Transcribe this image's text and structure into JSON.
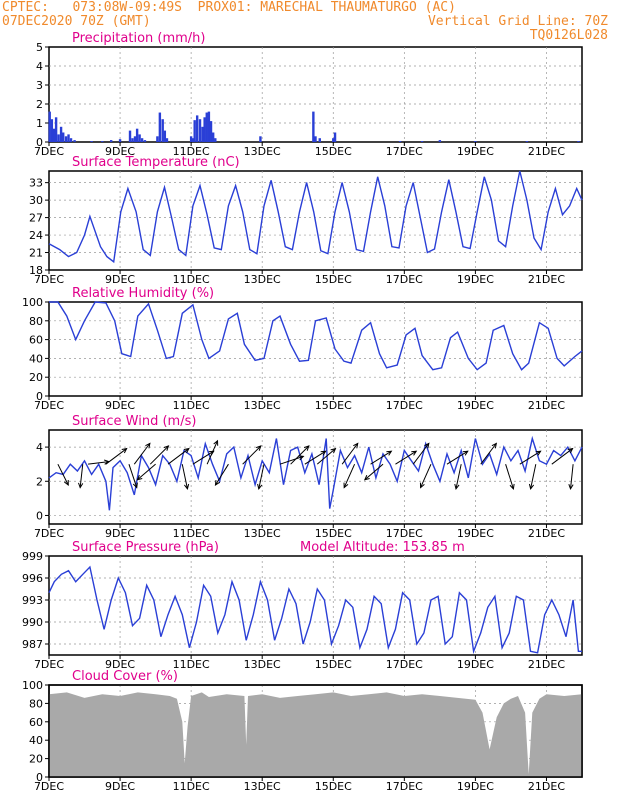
{
  "header": {
    "line1_left": "CPTEC:   073:08W-09:49S  PROX01: MARECHAL THAUMATURGO (AC)",
    "line2_left": "07DEC2020 70Z (GMT)",
    "line2_right": "Vertical Grid Line: 70Z",
    "line3_right": "TQ0126L028",
    "accent_color": "#f08a2c",
    "title_color": "#e0008c",
    "line_color": "#2a3fd6",
    "cloud_color": "#a9a9a9"
  },
  "x_axis": {
    "start": "7DEC",
    "end": "22DEC",
    "tick_labels": [
      "7DEC",
      "9DEC",
      "11DEC",
      "13DEC",
      "15DEC",
      "17DEC",
      "19DEC",
      "21DEC"
    ],
    "tick_days": [
      0,
      2,
      4,
      6,
      8,
      10,
      12,
      14
    ]
  },
  "chart_data": [
    {
      "id": "precip",
      "type": "bar",
      "title": "Precipitation (mm/h)",
      "ylim": [
        0,
        5
      ],
      "yticks": [
        0,
        1,
        2,
        3,
        4,
        5
      ],
      "x_unit": "days since 7DEC 00Z",
      "x": [
        0.02,
        0.08,
        0.14,
        0.2,
        0.27,
        0.34,
        0.4,
        0.48,
        0.55,
        0.62,
        0.72,
        1.2,
        1.5,
        1.75,
        2.0,
        2.28,
        2.35,
        2.42,
        2.48,
        2.55,
        2.62,
        2.7,
        3.05,
        3.12,
        3.2,
        3.26,
        3.32,
        4.0,
        4.05,
        4.1,
        4.17,
        4.25,
        4.32,
        4.38,
        4.44,
        4.5,
        4.56,
        4.62,
        4.68,
        5.95,
        7.44,
        7.5,
        7.62,
        8.0,
        8.05,
        9.88,
        10.5,
        11.0,
        12.0,
        13.45,
        14.9
      ],
      "values": [
        1.6,
        1.2,
        0.7,
        1.3,
        0.4,
        0.8,
        0.5,
        0.3,
        0.4,
        0.2,
        0.1,
        0.05,
        0.05,
        0.1,
        0.15,
        0.6,
        0.2,
        0.3,
        0.7,
        0.4,
        0.2,
        0.1,
        0.3,
        1.55,
        1.2,
        0.6,
        0.2,
        0.3,
        0.2,
        1.15,
        1.4,
        1.2,
        0.8,
        1.3,
        1.55,
        1.6,
        1.1,
        0.5,
        0.2,
        0.3,
        1.6,
        0.3,
        0.2,
        0.2,
        0.5,
        0.05,
        0.05,
        0.1,
        0.05,
        0.05,
        0.05
      ],
      "series_color": "#2a3fd6"
    },
    {
      "id": "temperature",
      "type": "line",
      "title": "Surface Temperature (nC)",
      "ylim": [
        18,
        35
      ],
      "yticks": [
        18,
        21,
        24,
        27,
        30,
        33
      ],
      "x_unit": "days since 7DEC 00Z",
      "x": [
        0,
        0.3,
        0.55,
        0.78,
        1.0,
        1.15,
        1.45,
        1.63,
        1.82,
        2.02,
        2.22,
        2.45,
        2.65,
        2.85,
        3.05,
        3.25,
        3.45,
        3.65,
        3.85,
        4.05,
        4.25,
        4.45,
        4.65,
        4.85,
        5.05,
        5.25,
        5.45,
        5.65,
        5.85,
        6.05,
        6.25,
        6.45,
        6.65,
        6.85,
        7.05,
        7.25,
        7.45,
        7.65,
        7.85,
        8.05,
        8.25,
        8.45,
        8.65,
        8.85,
        9.05,
        9.25,
        9.45,
        9.65,
        9.85,
        10.05,
        10.25,
        10.45,
        10.65,
        10.85,
        11.05,
        11.25,
        11.45,
        11.65,
        11.85,
        12.05,
        12.25,
        12.45,
        12.65,
        12.85,
        13.05,
        13.25,
        13.45,
        13.65,
        13.85,
        14.05,
        14.25,
        14.45,
        14.65,
        14.85,
        15.0
      ],
      "values": [
        22.5,
        21.5,
        20.3,
        21,
        24,
        27.2,
        22,
        20.3,
        19.4,
        28,
        32,
        28,
        21.5,
        20.5,
        28,
        32.2,
        27,
        21.5,
        20.5,
        29,
        32.5,
        27.5,
        21.8,
        21.5,
        29,
        32.5,
        28,
        21.5,
        20.8,
        29,
        33.4,
        28,
        22,
        21.5,
        28,
        33,
        28,
        21.3,
        20.8,
        28,
        33,
        28,
        21.5,
        21.2,
        28,
        34,
        29,
        22,
        21.8,
        29,
        33,
        27,
        21,
        21.6,
        28,
        33.5,
        28,
        22,
        21.7,
        28,
        34,
        30,
        23,
        22,
        29,
        35,
        30,
        23.5,
        21.5,
        28,
        32,
        27.5,
        29,
        32,
        30
      ],
      "series_color": "#2a3fd6"
    },
    {
      "id": "humidity",
      "type": "line",
      "title": "Relative Humidity (%)",
      "ylim": [
        0,
        100
      ],
      "yticks": [
        0,
        20,
        40,
        60,
        80,
        100
      ],
      "x_unit": "days since 7DEC 00Z",
      "x": [
        0,
        0.25,
        0.5,
        0.75,
        1.0,
        1.3,
        1.6,
        1.85,
        2.05,
        2.3,
        2.5,
        2.8,
        3.05,
        3.3,
        3.5,
        3.75,
        4.05,
        4.3,
        4.5,
        4.8,
        5.05,
        5.3,
        5.5,
        5.8,
        6.05,
        6.3,
        6.5,
        6.8,
        7.05,
        7.3,
        7.5,
        7.8,
        8.05,
        8.3,
        8.5,
        8.8,
        9.05,
        9.3,
        9.5,
        9.8,
        10.05,
        10.3,
        10.5,
        10.8,
        11.05,
        11.3,
        11.5,
        11.8,
        12.05,
        12.3,
        12.5,
        12.8,
        13.05,
        13.3,
        13.5,
        13.8,
        14.05,
        14.3,
        14.5,
        14.8,
        15.0
      ],
      "values": [
        100,
        100,
        85,
        60,
        80,
        100,
        99,
        80,
        45,
        42,
        85,
        98,
        70,
        40,
        42,
        88,
        97,
        60,
        40,
        48,
        82,
        88,
        55,
        38,
        40,
        80,
        85,
        55,
        37,
        38,
        80,
        83,
        50,
        37,
        35,
        70,
        78,
        45,
        30,
        33,
        65,
        72,
        43,
        28,
        30,
        62,
        68,
        40,
        28,
        35,
        70,
        75,
        45,
        28,
        35,
        78,
        72,
        40,
        32,
        42,
        48
      ],
      "series_color": "#2a3fd6"
    },
    {
      "id": "wind",
      "type": "line",
      "title": "Surface Wind (m/s)",
      "ylim": [
        -0.5,
        5
      ],
      "yticks": [
        0,
        2,
        4
      ],
      "x_unit": "days since 7DEC 00Z",
      "x": [
        0,
        0.2,
        0.4,
        0.6,
        0.8,
        1.0,
        1.2,
        1.4,
        1.6,
        1.7,
        1.8,
        2.0,
        2.2,
        2.4,
        2.6,
        2.8,
        3.0,
        3.2,
        3.4,
        3.6,
        3.8,
        4.0,
        4.2,
        4.4,
        4.6,
        4.8,
        5.0,
        5.2,
        5.4,
        5.6,
        5.8,
        6.0,
        6.2,
        6.4,
        6.6,
        6.8,
        7.0,
        7.2,
        7.4,
        7.6,
        7.8,
        7.9,
        8.0,
        8.2,
        8.4,
        8.6,
        8.8,
        9.0,
        9.2,
        9.4,
        9.6,
        9.8,
        10.0,
        10.2,
        10.4,
        10.6,
        10.8,
        11.0,
        11.2,
        11.4,
        11.6,
        11.8,
        12.0,
        12.2,
        12.4,
        12.6,
        12.8,
        13.0,
        13.2,
        13.4,
        13.6,
        13.8,
        14.0,
        14.2,
        14.4,
        14.6,
        14.8,
        15.0
      ],
      "values": [
        2.2,
        2.5,
        2.4,
        3.0,
        2.6,
        3.2,
        2.4,
        3.0,
        2.0,
        0.3,
        2.8,
        3.2,
        2.5,
        1.2,
        3.5,
        2.8,
        1.8,
        3.5,
        3.0,
        2.0,
        3.8,
        3.5,
        2.2,
        4.2,
        3.0,
        2.0,
        3.6,
        4.0,
        2.2,
        3.5,
        1.8,
        3.2,
        2.5,
        4.5,
        1.8,
        3.8,
        4.0,
        2.5,
        3.6,
        1.8,
        4.5,
        0.4,
        1.5,
        3.8,
        2.8,
        3.5,
        2.5,
        4.0,
        2.2,
        3.6,
        3.0,
        2.0,
        3.8,
        3.2,
        2.6,
        4.2,
        3.0,
        2.0,
        3.6,
        2.5,
        3.8,
        2.2,
        4.5,
        3.0,
        3.6,
        2.4,
        4.0,
        3.2,
        3.8,
        2.6,
        4.5,
        3.2,
        3.0,
        3.8,
        3.5,
        4.0,
        3.2,
        4.0
      ],
      "vectors": [
        {
          "x": 0.25,
          "u": 0.4,
          "v": -0.8
        },
        {
          "x": 0.95,
          "u": -0.1,
          "v": -0.9
        },
        {
          "x": 1.1,
          "u": 0.8,
          "v": 0.1
        },
        {
          "x": 1.6,
          "u": 0.8,
          "v": 0.6
        },
        {
          "x": 2.25,
          "u": 0.3,
          "v": -0.9
        },
        {
          "x": 2.4,
          "u": 0.6,
          "v": 0.8
        },
        {
          "x": 2.85,
          "u": 0.7,
          "v": 0.7
        },
        {
          "x": 3.0,
          "u": -0.7,
          "v": -0.6
        },
        {
          "x": 3.35,
          "u": 0.8,
          "v": 0.6
        },
        {
          "x": 3.75,
          "u": 0.2,
          "v": -0.95
        },
        {
          "x": 4.05,
          "u": 0.8,
          "v": 0.5
        },
        {
          "x": 4.45,
          "u": 0.4,
          "v": 0.9
        },
        {
          "x": 5.05,
          "u": -0.5,
          "v": -0.8
        },
        {
          "x": 5.45,
          "u": 0.7,
          "v": 0.7
        },
        {
          "x": 6.05,
          "u": -0.2,
          "v": -0.95
        },
        {
          "x": 6.5,
          "u": 0.9,
          "v": 0.3
        },
        {
          "x": 6.8,
          "u": 0.7,
          "v": 0.7
        },
        {
          "x": 7.2,
          "u": 0.8,
          "v": 0.5
        },
        {
          "x": 7.55,
          "u": 0.7,
          "v": 0.6
        },
        {
          "x": 8.25,
          "u": 0.6,
          "v": 0.8
        },
        {
          "x": 8.6,
          "u": -0.4,
          "v": -0.9
        },
        {
          "x": 9.05,
          "u": 0.8,
          "v": 0.5
        },
        {
          "x": 9.4,
          "u": -0.7,
          "v": -0.6
        },
        {
          "x": 9.75,
          "u": 0.8,
          "v": 0.5
        },
        {
          "x": 10.25,
          "u": 0.6,
          "v": 0.8
        },
        {
          "x": 10.75,
          "u": -0.4,
          "v": -0.9
        },
        {
          "x": 11.2,
          "u": 0.8,
          "v": 0.5
        },
        {
          "x": 11.6,
          "u": -0.2,
          "v": -0.95
        },
        {
          "x": 12.15,
          "u": 0.6,
          "v": 0.8
        },
        {
          "x": 12.85,
          "u": 0.3,
          "v": -0.95
        },
        {
          "x": 13.25,
          "u": 0.8,
          "v": 0.5
        },
        {
          "x": 13.7,
          "u": -0.2,
          "v": -0.95
        },
        {
          "x": 14.15,
          "u": 0.8,
          "v": 0.6
        },
        {
          "x": 14.75,
          "u": -0.1,
          "v": -0.95
        }
      ],
      "series_color": "#2a3fd6",
      "vector_color": "#000000"
    },
    {
      "id": "pressure",
      "type": "line",
      "title": "Surface Pressure (hPa)",
      "annotation": "Model Altitude: 153.85 m",
      "ylim": [
        985.5,
        999
      ],
      "yticks": [
        987,
        990,
        993,
        996,
        999
      ],
      "x_unit": "days since 7DEC 00Z",
      "x": [
        0,
        0.15,
        0.35,
        0.55,
        0.75,
        0.95,
        1.15,
        1.35,
        1.55,
        1.75,
        1.95,
        2.15,
        2.35,
        2.55,
        2.75,
        2.95,
        3.15,
        3.35,
        3.55,
        3.75,
        3.95,
        4.15,
        4.35,
        4.55,
        4.75,
        4.95,
        5.15,
        5.35,
        5.55,
        5.75,
        5.95,
        6.15,
        6.35,
        6.55,
        6.75,
        6.95,
        7.15,
        7.35,
        7.55,
        7.75,
        7.95,
        8.15,
        8.35,
        8.55,
        8.75,
        8.95,
        9.15,
        9.35,
        9.55,
        9.75,
        9.95,
        10.15,
        10.35,
        10.55,
        10.75,
        10.95,
        11.15,
        11.35,
        11.55,
        11.75,
        11.95,
        12.15,
        12.35,
        12.55,
        12.75,
        12.95,
        13.15,
        13.35,
        13.55,
        13.75,
        13.95,
        14.15,
        14.35,
        14.55,
        14.75,
        14.9,
        15.0
      ],
      "values": [
        994,
        995.5,
        996.5,
        997,
        995.5,
        996.5,
        997.5,
        993,
        989,
        993,
        996,
        994,
        989.5,
        990.5,
        995,
        993,
        988,
        991,
        993.5,
        991,
        986.5,
        990,
        995,
        993.5,
        988.5,
        991,
        995.5,
        993,
        987.5,
        991,
        995.5,
        993,
        987.5,
        990.5,
        994.5,
        992.5,
        987,
        990,
        994.5,
        993,
        987,
        989.5,
        993,
        992,
        986.5,
        989,
        993.5,
        992.5,
        986.5,
        989,
        994,
        993,
        987,
        988.5,
        993,
        993.5,
        987,
        988,
        994,
        993,
        986,
        988.5,
        992,
        993.5,
        986.5,
        988.5,
        993.5,
        993,
        986,
        985.8,
        991,
        993,
        991,
        988,
        993,
        986,
        986
      ],
      "series_color": "#2a3fd6"
    },
    {
      "id": "cloud",
      "type": "area",
      "title": "Cloud Cover (%)",
      "ylim": [
        0,
        100
      ],
      "yticks": [
        0,
        20,
        40,
        60,
        80,
        100
      ],
      "x_unit": "days since 7DEC 00Z",
      "x": [
        0,
        0.5,
        1.0,
        1.5,
        2.0,
        2.5,
        3.0,
        3.4,
        3.6,
        3.75,
        3.82,
        3.9,
        4.0,
        4.3,
        4.5,
        5.0,
        5.5,
        5.55,
        5.6,
        6.0,
        6.5,
        7.0,
        7.5,
        8.0,
        8.5,
        9.0,
        9.5,
        10.0,
        10.5,
        11.0,
        11.5,
        12.0,
        12.2,
        12.4,
        12.6,
        12.8,
        13.0,
        13.2,
        13.4,
        13.5,
        13.6,
        13.8,
        14.0,
        14.5,
        15.0
      ],
      "values": [
        90,
        92,
        86,
        90,
        88,
        92,
        90,
        88,
        85,
        60,
        15,
        55,
        88,
        92,
        87,
        90,
        88,
        35,
        88,
        90,
        86,
        88,
        90,
        92,
        88,
        90,
        92,
        88,
        90,
        88,
        86,
        84,
        70,
        30,
        65,
        80,
        85,
        88,
        70,
        3,
        70,
        85,
        90,
        88,
        90
      ],
      "series_color": "#a9a9a9"
    }
  ]
}
